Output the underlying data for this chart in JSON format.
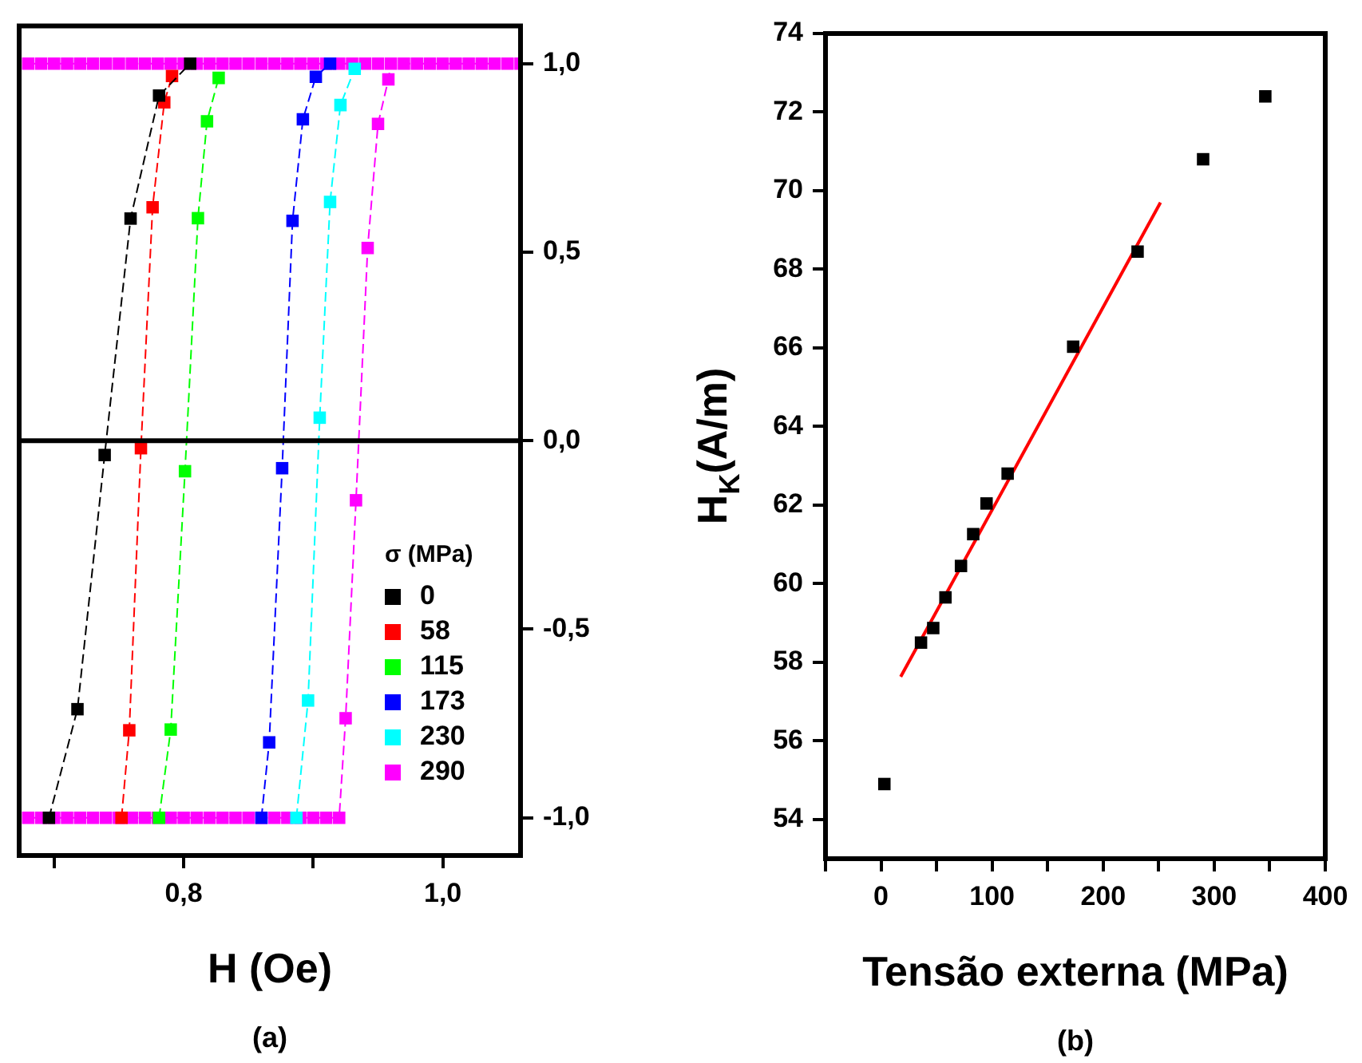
{
  "chart_data": [
    {
      "type": "line",
      "xlabel": "H (Oe)",
      "legend_title": "σ (MPa)",
      "legend": "bottom right",
      "marker": "square",
      "line_style": "dashed",
      "grid": false,
      "xlim": [
        0.673,
        1.06
      ],
      "xticks": [
        {
          "value": 0.7,
          "label": null
        },
        {
          "value": 0.8,
          "label": "0,8"
        },
        {
          "value": 0.9,
          "label": null
        },
        {
          "value": 1.0,
          "label": "1,0"
        }
      ],
      "ylim": [
        -1.1,
        1.1
      ],
      "yticks": [
        {
          "value": -1,
          "label": "-1,0"
        },
        {
          "value": -0.5,
          "label": "-0,5"
        },
        {
          "value": 0,
          "label": "0,0"
        },
        {
          "value": 0.5,
          "label": "0,5"
        },
        {
          "value": 1,
          "label": "1,0"
        }
      ],
      "ref_lines": [
        {
          "axis": "y",
          "value": 0,
          "color": "#000000"
        }
      ],
      "annotations": [
        "(a)"
      ],
      "series": [
        {
          "name": "0",
          "color": "#000000",
          "x": [
            0.696,
            0.718,
            0.739,
            0.759,
            0.781,
            0.805
          ],
          "values": [
            -1,
            -0.712,
            -0.038,
            0.589,
            0.915,
            1
          ]
        },
        {
          "name": "58",
          "color": "#ff0000",
          "x": [
            0.752,
            0.758,
            0.767,
            0.776,
            0.785,
            0.791
          ],
          "values": [
            -1,
            -0.768,
            -0.02,
            0.619,
            0.897,
            0.967
          ]
        },
        {
          "name": "115",
          "color": "#00ff00",
          "x": [
            0.781,
            0.79,
            0.801,
            0.811,
            0.818,
            0.827
          ],
          "values": [
            -1,
            -0.766,
            -0.081,
            0.59,
            0.847,
            0.962
          ]
        },
        {
          "name": "173",
          "color": "#0000ff",
          "x": [
            0.86,
            0.866,
            0.876,
            0.884,
            0.892,
            0.902,
            0.913
          ],
          "values": [
            -1,
            -0.8,
            -0.073,
            0.583,
            0.852,
            0.965,
            1
          ]
        },
        {
          "name": "230",
          "color": "#00ffff",
          "x": [
            0.887,
            0.896,
            0.905,
            0.913,
            0.921,
            0.932
          ],
          "values": [
            -1,
            -0.689,
            0.061,
            0.633,
            0.89,
            0.986
          ]
        },
        {
          "name": "290",
          "color": "#ff00ff",
          "x": [
            0.68,
            0.69,
            0.7,
            0.71,
            0.72,
            0.73,
            0.74,
            0.75,
            0.76,
            0.77,
            0.78,
            0.79,
            0.8,
            0.81,
            0.82,
            0.83,
            0.84,
            0.85,
            0.86,
            0.87,
            0.88,
            0.89,
            0.9,
            0.91,
            0.92,
            0.925,
            0.933,
            0.942,
            0.95,
            0.958,
            0.96,
            0.97,
            0.98,
            0.99,
            1.0,
            1.01,
            1.02,
            1.03,
            1.04,
            1.05,
            1.06,
            0.955,
            0.68,
            0.69,
            0.7,
            0.71,
            0.72,
            0.73,
            0.74,
            0.75,
            0.76,
            0.77,
            0.78,
            0.79,
            0.8,
            0.81,
            0.82,
            0.83,
            0.84,
            0.85,
            0.86,
            0.87,
            0.88,
            0.89,
            0.9,
            0.91,
            0.92,
            0.93,
            0.94,
            0.95
          ],
          "values": [
            -1,
            -1,
            -1,
            -1,
            -1,
            -1,
            -1,
            -1,
            -1,
            -1,
            -1,
            -1,
            -1,
            -1,
            -1,
            -1,
            -1,
            -1,
            -1,
            -1,
            -1,
            -1,
            -1,
            -1,
            -1,
            -0.736,
            -0.158,
            0.511,
            0.84,
            0.958,
            1,
            1,
            1,
            1,
            1,
            1,
            1,
            1,
            1,
            1,
            1,
            null,
            1,
            1,
            1,
            1,
            1,
            1,
            1,
            1,
            1,
            1,
            1,
            1,
            1,
            1,
            1,
            1,
            1,
            1,
            1,
            1,
            1,
            1,
            1,
            1,
            1,
            1,
            1,
            1
          ]
        }
      ]
    },
    {
      "type": "scatter",
      "xlabel": "Tensão externa (MPa)",
      "ylabel": "H$_{K}$(A/m)",
      "marker": "square",
      "grid": false,
      "xlim": [
        -50,
        400
      ],
      "xticks": [
        {
          "value": -50,
          "label": null
        },
        0,
        {
          "value": 50,
          "label": null
        },
        100,
        {
          "value": 150,
          "label": null
        },
        200,
        {
          "value": 250,
          "label": null
        },
        300,
        {
          "value": 350,
          "label": null
        },
        400
      ],
      "ylim": [
        53,
        74
      ],
      "yticks": [
        54,
        56,
        58,
        60,
        62,
        64,
        66,
        68,
        70,
        72,
        74
      ],
      "annotations": [
        "(b)"
      ],
      "series": [
        {
          "color": "#000000",
          "x": [
            3,
            36,
            47,
            58,
            72,
            83,
            95,
            114,
            173,
            231,
            290,
            346
          ],
          "values": [
            54.9,
            58.5,
            58.87,
            59.65,
            60.45,
            61.26,
            62.04,
            62.8,
            66.03,
            68.45,
            70.8,
            72.4
          ]
        },
        {
          "type": "line",
          "marker": "none",
          "color": "#ff0000",
          "x": [
            17.7,
            251.6
          ],
          "values": [
            57.63,
            69.7
          ]
        }
      ]
    }
  ]
}
